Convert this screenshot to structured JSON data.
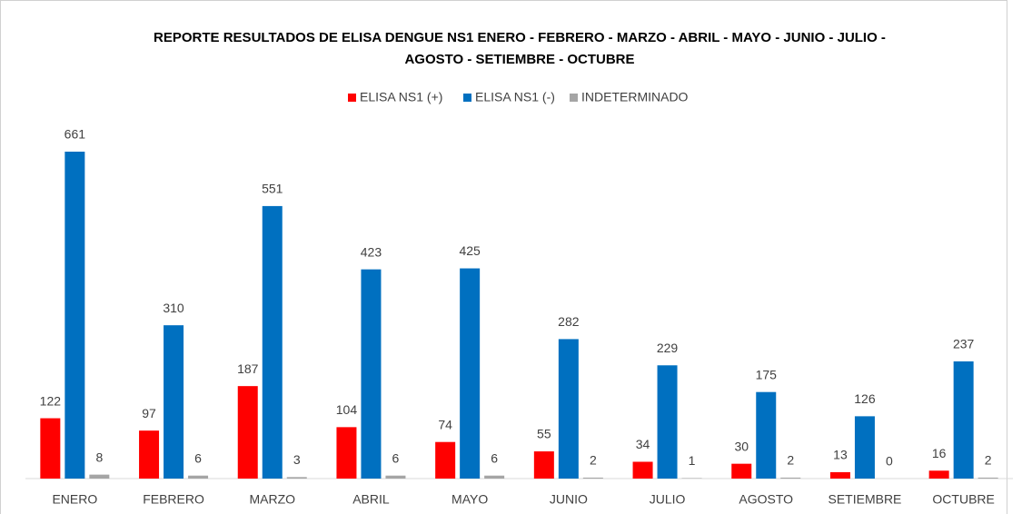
{
  "chart_data": {
    "type": "bar",
    "title": [
      "REPORTE RESULTADOS DE ELISA DENGUE NS1 ENERO - FEBRERO - MARZO - ABRIL - MAYO - JUNIO - JULIO -",
      "AGOSTO - SETIEMBRE - OCTUBRE"
    ],
    "categories": [
      "ENERO",
      "FEBRERO",
      "MARZO",
      "ABRIL",
      "MAYO",
      "JUNIO",
      "JULIO",
      "AGOSTO",
      "SETIEMBRE",
      "OCTUBRE"
    ],
    "series": [
      {
        "name": "ELISA NS1 (+)",
        "color": "#ff0000",
        "values": [
          122,
          97,
          187,
          104,
          74,
          55,
          34,
          30,
          13,
          16
        ]
      },
      {
        "name": "ELISA NS1 (-)",
        "color": "#0070c0",
        "values": [
          661,
          310,
          551,
          423,
          425,
          282,
          229,
          175,
          126,
          237
        ]
      },
      {
        "name": "INDETERMINADO",
        "color": "#a5a5a5",
        "values": [
          8,
          6,
          3,
          6,
          6,
          2,
          1,
          2,
          0,
          2
        ]
      }
    ],
    "legend": "top"
  }
}
